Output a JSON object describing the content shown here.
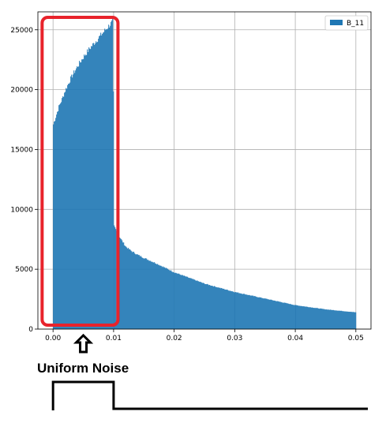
{
  "chart_data": {
    "type": "histogram",
    "xlim": [
      -0.0025,
      0.0525
    ],
    "ylim": [
      0,
      26500
    ],
    "xticks": [
      0.0,
      0.01,
      0.02,
      0.03,
      0.04,
      0.05
    ],
    "xtick_labels": [
      "0.00",
      "0.01",
      "0.02",
      "0.03",
      "0.04",
      "0.05"
    ],
    "yticks": [
      0,
      5000,
      10000,
      15000,
      20000,
      25000
    ],
    "ytick_labels": [
      "0",
      "5000",
      "10000",
      "15000",
      "20000",
      "25000"
    ],
    "grid": true,
    "legend_position": "top-right",
    "series": [
      {
        "name": "B_11",
        "color": "#1f77b4",
        "x": [
          0.0,
          0.0005,
          0.001,
          0.0015,
          0.002,
          0.003,
          0.004,
          0.005,
          0.006,
          0.007,
          0.008,
          0.009,
          0.0099,
          0.0101,
          0.011,
          0.012,
          0.013,
          0.014,
          0.015,
          0.017,
          0.02,
          0.025,
          0.03,
          0.035,
          0.04,
          0.045,
          0.05
        ],
        "y": [
          17000,
          17800,
          18600,
          19200,
          19900,
          21000,
          21900,
          22700,
          23400,
          24000,
          24600,
          25200,
          25700,
          8600,
          7700,
          6900,
          6500,
          6200,
          5950,
          5500,
          4750,
          3800,
          3100,
          2550,
          2000,
          1650,
          1400
        ]
      }
    ],
    "annotations": [
      {
        "type": "highlight-box",
        "x_range": [
          -0.0005,
          0.0115
        ],
        "color": "#e8232b"
      },
      {
        "type": "up-arrow",
        "x": 0.005
      },
      {
        "type": "text",
        "text": "Uniform Noise"
      },
      {
        "type": "step-diagram",
        "description_shape": "pulse high from 0.00 to 0.01 then low"
      }
    ]
  }
}
